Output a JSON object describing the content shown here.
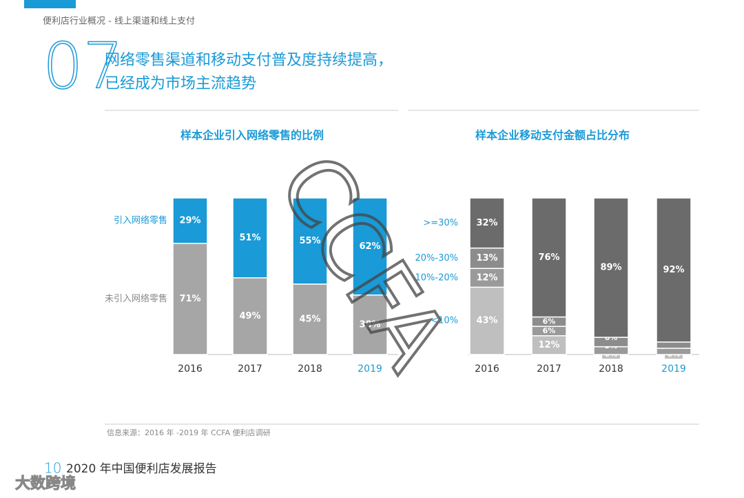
{
  "header": {
    "breadcrumb": "便利店行业概况 - 线上渠道和线上支付",
    "number": "07",
    "headline": [
      "网络零售渠道和移动支付普及度持续提高，",
      "已经成为市场主流趋势"
    ]
  },
  "chart_data": [
    {
      "type": "bar",
      "stacked": true,
      "title": "样本企业引入网络零售的比例",
      "categories": [
        "2016",
        "2017",
        "2018",
        "2019"
      ],
      "category_colors": [
        "#333333",
        "#333333",
        "#333333",
        "#1a9ad6"
      ],
      "ylim": [
        0,
        100
      ],
      "series": [
        {
          "name": "未引入网络零售",
          "color": "#a6a6a6",
          "values": [
            71,
            49,
            45,
            38
          ],
          "value_labels": [
            "71%",
            "49%",
            "45%",
            "38%"
          ]
        },
        {
          "name": "引入网络零售",
          "color": "#1a9ad6",
          "values": [
            29,
            51,
            55,
            62
          ],
          "value_labels": [
            "29%",
            "51%",
            "55%",
            "62%"
          ]
        }
      ]
    },
    {
      "type": "bar",
      "stacked": true,
      "title": "样本企业移动支付金额占比分布",
      "categories": [
        "2016",
        "2017",
        "2018",
        "2019"
      ],
      "category_colors": [
        "#333333",
        "#333333",
        "#333333",
        "#1a9ad6"
      ],
      "ylim": [
        0,
        100
      ],
      "series": [
        {
          "name": "<10%",
          "color": "#bfbfbf",
          "values": [
            43,
            12,
            0,
            0
          ],
          "value_labels": [
            "43%",
            "12%",
            "0%",
            "0%"
          ]
        },
        {
          "name": "10%-20%",
          "color": "#9a9a9a",
          "values": [
            12,
            6,
            5,
            4
          ],
          "value_labels": [
            "12%",
            "6%",
            "5%",
            "4%"
          ]
        },
        {
          "name": "20%-30%",
          "color": "#8c8c8c",
          "values": [
            13,
            6,
            6,
            4
          ],
          "value_labels": [
            "13%",
            "6%",
            "6%",
            "4%"
          ]
        },
        {
          "name": ">=30%",
          "color": "#6b6b6b",
          "values": [
            32,
            76,
            89,
            92
          ],
          "value_labels": [
            "32%",
            "76%",
            "89%",
            "92%"
          ]
        }
      ]
    }
  ],
  "source": "信息来源：2016 年 -2019 年 CCFA 便利店调研",
  "footer": {
    "page": "10",
    "title": "2020 年中国便利店发展报告"
  },
  "watermarks": [
    "CCFA",
    "大数跨境"
  ]
}
